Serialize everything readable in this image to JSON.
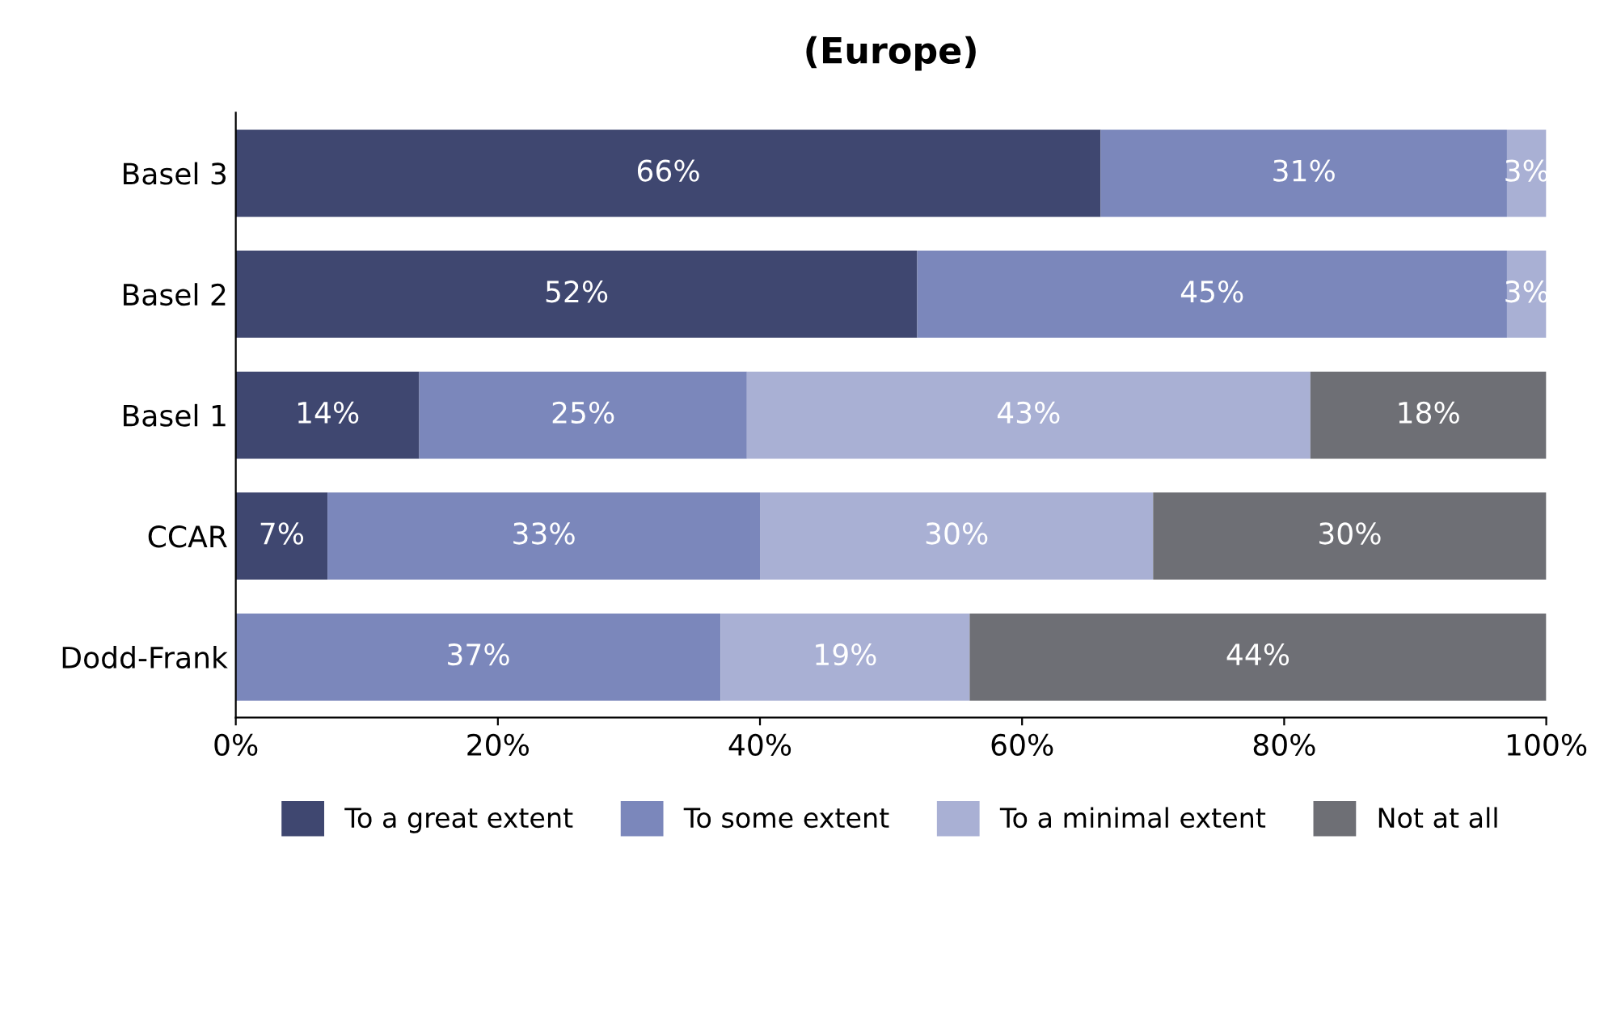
{
  "chart_data": {
    "type": "bar",
    "orientation": "horizontal",
    "stacked": true,
    "title": "(Europe)",
    "categories": [
      "Basel 3",
      "Basel 2",
      "Basel 1",
      "CCAR",
      "Dodd-Frank"
    ],
    "series": [
      {
        "name": "To a great extent",
        "color": "#3f4770",
        "values": [
          66,
          52,
          14,
          7,
          null
        ],
        "value_labels": [
          "66%",
          "52%",
          "14%",
          "7%",
          null
        ]
      },
      {
        "name": "To some extent",
        "color": "#7b87bb",
        "values": [
          31,
          45,
          25,
          33,
          37
        ],
        "value_labels": [
          "31%",
          "45%",
          "25%",
          "33%",
          "37%"
        ]
      },
      {
        "name": "To a minimal extent",
        "color": "#a9b0d4",
        "values": [
          3,
          3,
          43,
          30,
          19
        ],
        "value_labels": [
          "3%",
          "3%",
          "43%",
          "30%",
          "19%"
        ]
      },
      {
        "name": "Not at all",
        "color": "#6e6f75",
        "values": [
          null,
          null,
          18,
          30,
          44
        ],
        "value_labels": [
          null,
          null,
          "18%",
          "30%",
          "44%"
        ]
      }
    ],
    "xlim": [
      0,
      100
    ],
    "xticks": [
      {
        "value": 0,
        "label": "0%"
      },
      {
        "value": 20,
        "label": "20%"
      },
      {
        "value": 40,
        "label": "40%"
      },
      {
        "value": 60,
        "label": "60%"
      },
      {
        "value": 80,
        "label": "80%"
      },
      {
        "value": 100,
        "label": "100%"
      }
    ],
    "grid": false,
    "legend": "bottom"
  }
}
